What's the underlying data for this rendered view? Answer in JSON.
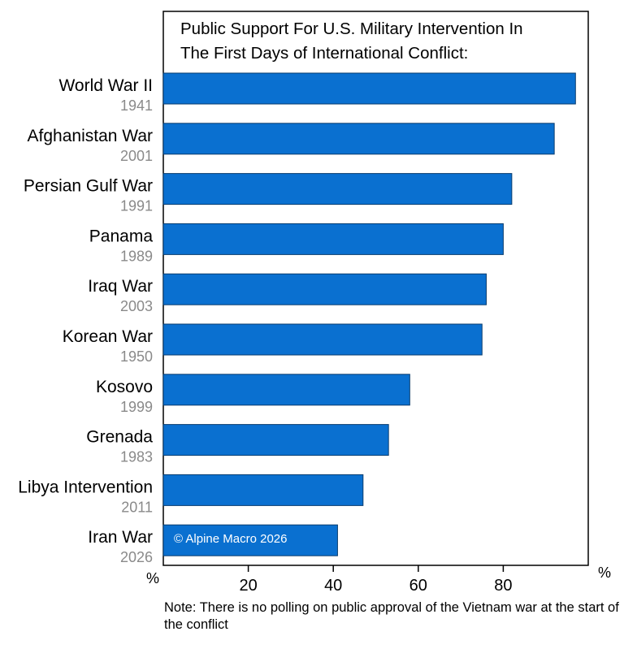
{
  "chart_data": {
    "type": "bar",
    "orientation": "horizontal",
    "title_lines": [
      "Public Support For U.S. Military Intervention In",
      "The First Days of International Conflict:"
    ],
    "categories": [
      "World War II",
      "Afghanistan War",
      "Persian Gulf War",
      "Panama",
      "Iraq War",
      "Korean War",
      "Kosovo",
      "Grenada",
      "Libya Intervention",
      "Iran War"
    ],
    "years": [
      "1941",
      "2001",
      "1991",
      "1989",
      "2003",
      "1950",
      "1999",
      "1983",
      "2011",
      "2026"
    ],
    "values": [
      97,
      92,
      82,
      80,
      76,
      75,
      58,
      53,
      47,
      41
    ],
    "xlim": [
      0,
      100
    ],
    "x_ticks": [
      20,
      40,
      60,
      80
    ],
    "x_unit_left": "%",
    "x_unit_right": "%",
    "grid": false,
    "bar_color": "#0a70d0",
    "bar_edge_color": "#0a3d6e",
    "year_color": "#8a8a8a",
    "watermark": "© Alpine Macro 2026",
    "note": "Note: There is no polling on public approval of the Vietnam war at the start of the conflict"
  }
}
